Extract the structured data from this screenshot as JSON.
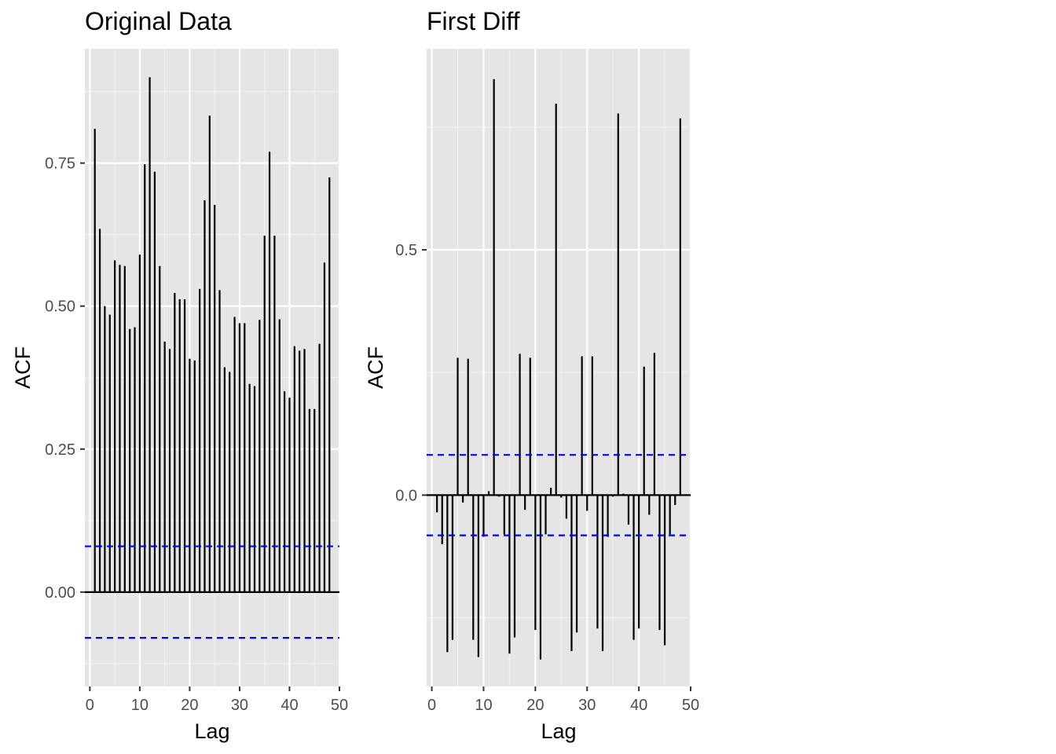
{
  "chart_data": [
    {
      "type": "bar",
      "subtype": "acf",
      "title": "Original Data",
      "xlabel": "Lag",
      "ylabel": "ACF",
      "xlim": [
        -1,
        50
      ],
      "ylim": [
        -0.165,
        0.95
      ],
      "x_ticks": [
        0,
        10,
        20,
        30,
        40,
        50
      ],
      "x_tick_labels": [
        "0",
        "10",
        "20",
        "30",
        "40",
        "50"
      ],
      "y_ticks": [
        0,
        0.25,
        0.5,
        0.75
      ],
      "y_tick_labels": [
        "0.00",
        "0.25",
        "0.50",
        "0.75"
      ],
      "confidence_bound": 0.08,
      "lags": [
        1,
        2,
        3,
        4,
        5,
        6,
        7,
        8,
        9,
        10,
        11,
        12,
        13,
        14,
        15,
        16,
        17,
        18,
        19,
        20,
        21,
        22,
        23,
        24,
        25,
        26,
        27,
        28,
        29,
        30,
        31,
        32,
        33,
        34,
        35,
        36,
        37,
        38,
        39,
        40,
        41,
        42,
        43,
        44,
        45,
        46,
        47,
        48
      ],
      "values": [
        0.81,
        0.635,
        0.5,
        0.485,
        0.58,
        0.572,
        0.57,
        0.46,
        0.463,
        0.59,
        0.748,
        0.9,
        0.735,
        0.57,
        0.438,
        0.425,
        0.523,
        0.512,
        0.512,
        0.408,
        0.405,
        0.53,
        0.685,
        0.833,
        0.677,
        0.528,
        0.393,
        0.385,
        0.481,
        0.47,
        0.47,
        0.364,
        0.36,
        0.476,
        0.623,
        0.77,
        0.623,
        0.477,
        0.351,
        0.34,
        0.43,
        0.422,
        0.425,
        0.32,
        0.32,
        0.434,
        0.576,
        0.725
      ],
      "grid": true
    },
    {
      "type": "bar",
      "subtype": "acf",
      "title": "First Diff",
      "xlabel": "Lag",
      "ylabel": "ACF",
      "xlim": [
        -1,
        50
      ],
      "ylim": [
        -0.39,
        0.91
      ],
      "x_ticks": [
        0,
        10,
        20,
        30,
        40,
        50
      ],
      "x_tick_labels": [
        "0",
        "10",
        "20",
        "30",
        "40",
        "50"
      ],
      "y_ticks": [
        0,
        0.5
      ],
      "y_tick_labels": [
        "0.0",
        "0.5"
      ],
      "confidence_bound": 0.082,
      "lags": [
        1,
        2,
        3,
        4,
        5,
        6,
        7,
        8,
        9,
        10,
        11,
        12,
        13,
        14,
        15,
        16,
        17,
        18,
        19,
        20,
        21,
        22,
        23,
        24,
        25,
        26,
        27,
        28,
        29,
        30,
        31,
        32,
        33,
        34,
        35,
        36,
        37,
        38,
        39,
        40,
        41,
        42,
        43,
        44,
        45,
        46,
        47,
        48
      ],
      "values": [
        -0.035,
        -0.1,
        -0.32,
        -0.295,
        0.28,
        -0.015,
        0.278,
        -0.295,
        -0.33,
        -0.085,
        0.008,
        0.848,
        -0.003,
        -0.08,
        -0.323,
        -0.29,
        0.288,
        -0.03,
        0.28,
        -0.275,
        -0.335,
        -0.08,
        0.015,
        0.798,
        -0.005,
        -0.048,
        -0.318,
        -0.28,
        0.283,
        -0.032,
        0.283,
        -0.272,
        -0.318,
        -0.085,
        -0.003,
        0.778,
        0.003,
        -0.06,
        -0.295,
        -0.272,
        0.262,
        -0.04,
        0.29,
        -0.275,
        -0.306,
        -0.08,
        -0.02,
        0.768
      ],
      "grid": true
    }
  ]
}
